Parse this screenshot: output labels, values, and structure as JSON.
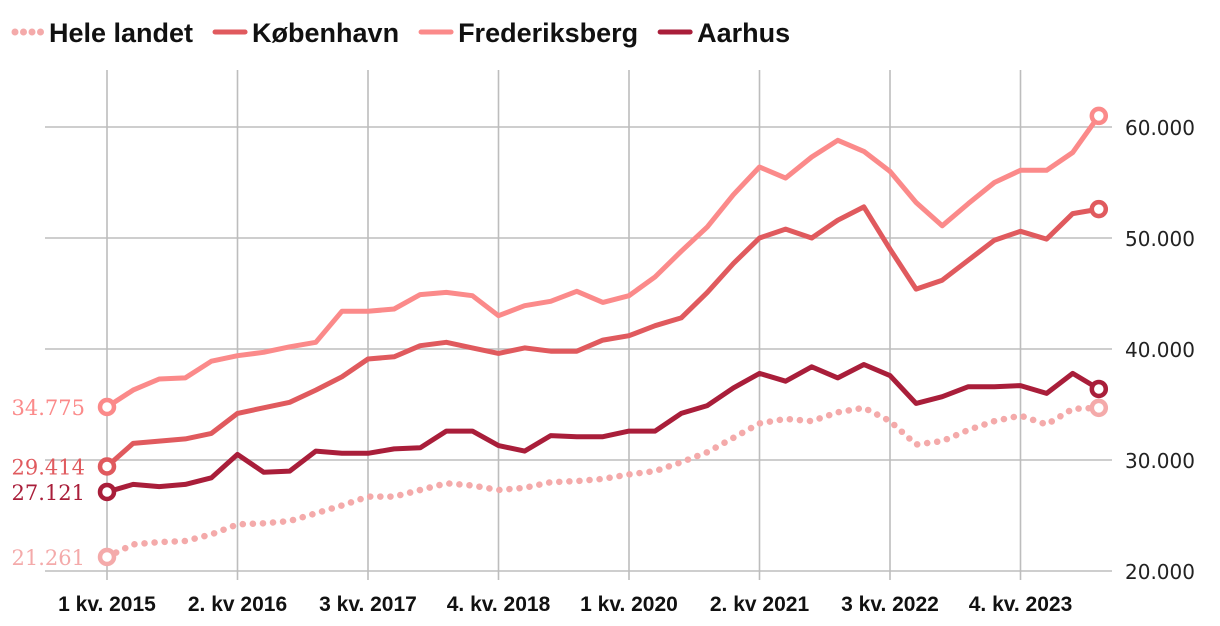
{
  "chart_data": {
    "type": "line",
    "title": "",
    "xlabel": "",
    "ylabel": "",
    "ylim": [
      20000,
      65000
    ],
    "y_ticks": [
      20000,
      30000,
      40000,
      50000,
      60000
    ],
    "y_tick_labels": [
      "20.000",
      "30.000",
      "40.000",
      "50.000",
      "60.000"
    ],
    "x_tick_labels": [
      {
        "index": 0,
        "label": "1 kv. 2015"
      },
      {
        "index": 5,
        "label": "2. kv 2016"
      },
      {
        "index": 10,
        "label": "3 kv. 2017"
      },
      {
        "index": 15,
        "label": "4. kv. 2018"
      },
      {
        "index": 20,
        "label": "1 kv. 2020"
      },
      {
        "index": 25,
        "label": "2. kv 2021"
      },
      {
        "index": 30,
        "label": "3 kv. 2022"
      },
      {
        "index": 35,
        "label": "4. kv. 2023"
      }
    ],
    "n_points": 39,
    "grid": true,
    "legend_position": "top-left",
    "series": [
      {
        "name": "Hele landet",
        "color": "#f4aaaa",
        "style": "dotted",
        "start_label": "21.261",
        "values": [
          21261,
          22400,
          22600,
          22700,
          23300,
          24200,
          24300,
          24500,
          25200,
          25900,
          26700,
          26700,
          27300,
          27900,
          27700,
          27300,
          27500,
          28000,
          28100,
          28300,
          28700,
          29000,
          29800,
          30700,
          32000,
          33300,
          33700,
          33500,
          34300,
          34700,
          33500,
          31400,
          31700,
          32700,
          33500,
          34000,
          33200,
          34600,
          34700
        ]
      },
      {
        "name": "København",
        "color": "#e05a5e",
        "style": "solid",
        "start_label": "29.414",
        "values": [
          29414,
          31500,
          31700,
          31900,
          32400,
          34200,
          34700,
          35200,
          36300,
          37500,
          39100,
          39300,
          40300,
          40600,
          40100,
          39600,
          40100,
          39800,
          39800,
          40800,
          41200,
          42100,
          42800,
          45100,
          47700,
          50000,
          50800,
          50000,
          51600,
          52800,
          49000,
          45400,
          46200,
          48000,
          49800,
          50600,
          49900,
          52200,
          52600
        ]
      },
      {
        "name": "Frederiksberg",
        "color": "#fb8a8a",
        "style": "solid",
        "start_label": "34.775",
        "values": [
          34775,
          36300,
          37300,
          37400,
          38900,
          39400,
          39700,
          40200,
          40600,
          43400,
          43400,
          43600,
          44900,
          45100,
          44800,
          43000,
          43900,
          44300,
          45200,
          44200,
          44800,
          46500,
          48800,
          51000,
          53900,
          56400,
          55400,
          57300,
          58800,
          57800,
          56000,
          53200,
          51100,
          53100,
          55000,
          56100,
          56100,
          57700,
          61000
        ]
      },
      {
        "name": "Aarhus",
        "color": "#a91e3a",
        "style": "solid",
        "start_label": "27.121",
        "values": [
          27121,
          27800,
          27600,
          27800,
          28400,
          30500,
          28900,
          29000,
          30800,
          30600,
          30600,
          31000,
          31100,
          32600,
          32600,
          31300,
          30800,
          32200,
          32100,
          32100,
          32600,
          32600,
          34200,
          34900,
          36500,
          37800,
          37100,
          38400,
          37400,
          38600,
          37600,
          35100,
          35700,
          36600,
          36600,
          36700,
          36000,
          37800,
          36400
        ]
      }
    ]
  }
}
